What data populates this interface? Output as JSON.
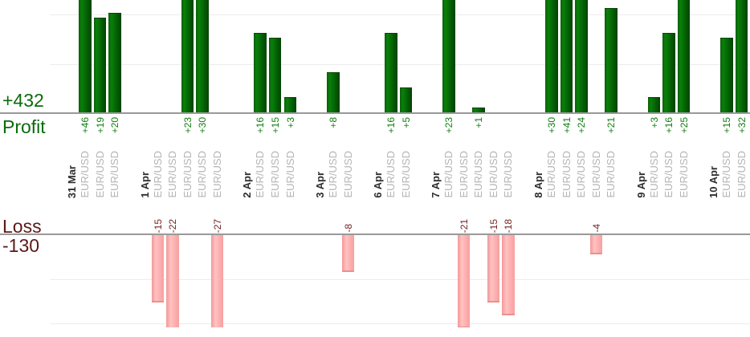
{
  "chart_data": {
    "type": "bar",
    "profit_summary": {
      "total_label": "+432",
      "axis_label": "Profit",
      "total": 432
    },
    "loss_summary": {
      "axis_label": "Loss",
      "total_label": "-130",
      "total": -130
    },
    "axes": {
      "profit_gridline_step": 10,
      "loss_gridline_step": 10,
      "profit_visible_range": [
        0,
        23
      ],
      "loss_visible_range": [
        0,
        -21
      ],
      "grid": "on",
      "bar_labels_rotated": true
    },
    "groups": [
      {
        "date": "31 Mar",
        "trades": [
          {
            "instrument": "EUR/USD",
            "value": 46,
            "label": "+46"
          },
          {
            "instrument": "EUR/USD",
            "value": 19,
            "label": "+19"
          },
          {
            "instrument": "EUR/USD",
            "value": 20,
            "label": "+20"
          }
        ]
      },
      {
        "date": "1 Apr",
        "trades": [
          {
            "instrument": "EUR/USD",
            "value": -15,
            "label": "-15"
          },
          {
            "instrument": "EUR/USD",
            "value": -22,
            "label": "-22"
          },
          {
            "instrument": "EUR/USD",
            "value": 23,
            "label": "+23"
          },
          {
            "instrument": "EUR/USD",
            "value": 30,
            "label": "+30"
          },
          {
            "instrument": "EUR/USD",
            "value": -27,
            "label": "-27"
          }
        ]
      },
      {
        "date": "2 Apr",
        "trades": [
          {
            "instrument": "EUR/USD",
            "value": 16,
            "label": "+16"
          },
          {
            "instrument": "EUR/USD",
            "value": 15,
            "label": "+15"
          },
          {
            "instrument": "EUR/USD",
            "value": 3,
            "label": "+3"
          }
        ]
      },
      {
        "date": "3 Apr",
        "trades": [
          {
            "instrument": "EUR/USD",
            "value": 8,
            "label": "+8"
          },
          {
            "instrument": "EUR/USD",
            "value": -8,
            "label": "-8"
          }
        ]
      },
      {
        "date": "6 Apr",
        "trades": [
          {
            "instrument": "EUR/USD",
            "value": 16,
            "label": "+16"
          },
          {
            "instrument": "EUR/USD",
            "value": 5,
            "label": "+5"
          }
        ]
      },
      {
        "date": "7 Apr",
        "trades": [
          {
            "instrument": "EUR/USD",
            "value": 23,
            "label": "+23"
          },
          {
            "instrument": "EUR/USD",
            "value": -21,
            "label": "-21"
          },
          {
            "instrument": "EUR/USD",
            "value": 1,
            "label": "+1"
          },
          {
            "instrument": "EUR/USD",
            "value": -15,
            "label": "-15"
          },
          {
            "instrument": "EUR/USD",
            "value": -18,
            "label": "-18"
          }
        ]
      },
      {
        "date": "8 Apr",
        "trades": [
          {
            "instrument": "EUR/USD",
            "value": 30,
            "label": "+30"
          },
          {
            "instrument": "EUR/USD",
            "value": 41,
            "label": "+41"
          },
          {
            "instrument": "EUR/USD",
            "value": 24,
            "label": "+24"
          },
          {
            "instrument": "EUR/USD",
            "value": -4,
            "label": "-4"
          },
          {
            "instrument": "EUR/USD",
            "value": 21,
            "label": "+21"
          }
        ]
      },
      {
        "date": "9 Apr",
        "trades": [
          {
            "instrument": "EUR/USD",
            "value": 3,
            "label": "+3"
          },
          {
            "instrument": "EUR/USD",
            "value": 16,
            "label": "+16"
          },
          {
            "instrument": "EUR/USD",
            "value": 25,
            "label": "+25"
          }
        ]
      },
      {
        "date": "10 Apr",
        "trades": [
          {
            "instrument": "EUR/USD",
            "value": 15,
            "label": "+15"
          },
          {
            "instrument": "EUR/USD",
            "value": 32,
            "label": "+32"
          }
        ]
      }
    ],
    "colors": {
      "profit_bar": "#067a06",
      "loss_bar": "#ffb3b3",
      "profit_text": "#0b6b0b",
      "profit_value_text": "#0f7d0f",
      "loss_text": "#5a1a1a",
      "loss_value_text": "#732424",
      "date_text": "#2e2e2e",
      "instrument_text": "#b4b4b4",
      "axis_line": "#999999",
      "gridline": "#ececec"
    }
  }
}
